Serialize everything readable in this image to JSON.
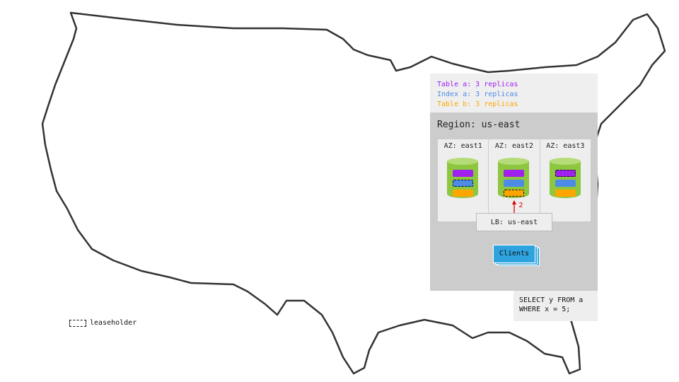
{
  "legend": {
    "lines": [
      {
        "text": "Table a: 3 replicas",
        "color": "#a020f0"
      },
      {
        "text": "Index a: 3 replicas",
        "color": "#4d8ce6"
      },
      {
        "text": "Table b: 3 replicas",
        "color": "#ffa500"
      }
    ]
  },
  "region": {
    "title": "Region: us-east",
    "azs": [
      {
        "label": "AZ: east1",
        "leaseholder": "index-a"
      },
      {
        "label": "AZ: east2",
        "leaseholder": "table-b"
      },
      {
        "label": "AZ: east3",
        "leaseholder": "table-a"
      }
    ],
    "lb": "LB: us-east",
    "arrow_label": "2",
    "clients": "Clients"
  },
  "query": {
    "line1": "SELECT y FROM a",
    "line2": "WHERE x = 5;"
  },
  "key": {
    "leaseholder": "leaseholder"
  },
  "colors": {
    "table_a": "#a020f0",
    "index_a": "#4d8ce6",
    "table_b": "#ffa500",
    "node": "#8dc63f",
    "clients": "#2ea3dd",
    "arrow": "#e00000"
  }
}
